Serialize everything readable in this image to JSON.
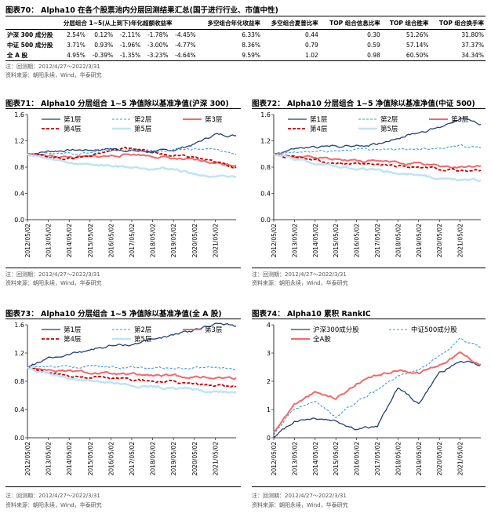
{
  "table70": {
    "title": "图表70：  Alpha10 在各个股票池内分层回测结果汇总(国于进行行业、市值中性)",
    "headers": [
      "",
      "分层组合 1~5(从上到下)年化超额收益率",
      "",
      "",
      "",
      "",
      "多空组合年化收益率",
      "多空组合夏普比率",
      "TOP 组合信息比率",
      "TOP 组合胜率",
      "TOP 组合换手率"
    ],
    "rows": [
      [
        "沪深 300 成分股",
        "2.54%",
        "0.12%",
        "-2.11%",
        "-1.78%",
        "-4.45%",
        "6.33%",
        "0.44",
        "0.30",
        "51.26%",
        "31.80%"
      ],
      [
        "中证 500 成分股",
        "3.71%",
        "0.93%",
        "-1.96%",
        "-3.00%",
        "-4.77%",
        "8.36%",
        "0.79",
        "0.59",
        "57.14%",
        "37.37%"
      ],
      [
        "全 A 股",
        "4.95%",
        "-0.39%",
        "-1.35%",
        "-3.23%",
        "-4.64%",
        "9.59%",
        "1.02",
        "0.98",
        "60.50%",
        "34.34%"
      ]
    ],
    "note1": "注：回测期：2012/4/27～2022/3/31",
    "note2": "资料来源：朝阳永续，Wind，华泰研究"
  },
  "fig71": {
    "title": "图表71：  Alpha10 分层组合 1~5 净值除以基准净值(沪深 300)",
    "note1": "注：回测期：2012/4/27～2022/3/31",
    "note2": "资料来源：朝阳永续，Wind，华泰研究"
  },
  "fig72": {
    "title": "图表72：  Alpha10 分层组合 1~5 净值除以基准净值(中证 500)",
    "note1": "注：回测期：2012/4/27～2022/3/31",
    "note2": "资料来源：朝阳永续，Wind，华泰研究"
  },
  "fig73": {
    "title": "图表73：  Alpha10 分层组合 1~5 净值除以基准净值(全 A 股)",
    "note1": "注：回测期：2012/4/27～2022/3/31",
    "note2": "资料来源：朝阳永续，Wind，华泰研究"
  },
  "fig74": {
    "title": "图表74：  Alpha10 累积 RankIC",
    "note1": "注：回测期：2012/4/27～2022/3/31",
    "note2": "资料来源：朝阳永续，Wind，华泰研究"
  },
  "colors": {
    "layer1": "#1f3f7a",
    "layer2": "#3a9ad9",
    "layer3": "#f06a6a",
    "layer4": "#c00000",
    "layer5": "#bfe3f5",
    "ic_hs300": "#1f3f7a",
    "ic_zz500": "#3a9ad9",
    "ic_all": "#f06a6a"
  },
  "chart_data": [
    {
      "type": "line",
      "id": "fig71",
      "x": [
        "2012/05/02",
        "2013/05/02",
        "2014/05/02",
        "2015/05/02",
        "2016/05/02",
        "2017/05/02",
        "2018/05/02",
        "2019/05/02",
        "2020/05/02",
        "2021/05/02",
        "2022/03/31"
      ],
      "ylim": [
        0,
        1.6
      ],
      "yticks": [
        0.0,
        0.4,
        0.8,
        1.2,
        1.6
      ],
      "legend_cols": 3,
      "series": [
        {
          "name": "第1层",
          "values": [
            1.0,
            1.04,
            1.06,
            1.06,
            1.08,
            1.05,
            1.03,
            1.06,
            1.15,
            1.3,
            1.28
          ]
        },
        {
          "name": "第2层",
          "values": [
            1.0,
            1.01,
            1.02,
            1.02,
            1.05,
            1.06,
            1.05,
            1.05,
            1.08,
            1.06,
            1.0
          ]
        },
        {
          "name": "第3层",
          "values": [
            1.0,
            0.97,
            0.95,
            0.95,
            0.97,
            1.0,
            0.97,
            0.93,
            0.9,
            0.86,
            0.83
          ]
        },
        {
          "name": "第4层",
          "values": [
            1.0,
            0.96,
            0.93,
            0.98,
            1.05,
            1.1,
            1.02,
            0.97,
            0.95,
            0.87,
            0.8
          ]
        },
        {
          "name": "第5层",
          "values": [
            1.0,
            0.92,
            0.87,
            0.84,
            0.82,
            0.8,
            0.79,
            0.77,
            0.7,
            0.64,
            0.65
          ]
        }
      ]
    },
    {
      "type": "line",
      "id": "fig72",
      "x": [
        "2012/05/02",
        "2013/05/02",
        "2014/05/02",
        "2015/05/02",
        "2016/05/02",
        "2017/05/02",
        "2018/05/02",
        "2019/05/02",
        "2020/05/02",
        "2021/05/02",
        "2022/03/31"
      ],
      "ylim": [
        0,
        1.6
      ],
      "yticks": [
        0.0,
        0.4,
        0.8,
        1.2,
        1.6
      ],
      "legend_cols": 3,
      "series": [
        {
          "name": "第1层",
          "values": [
            1.0,
            1.08,
            1.1,
            1.12,
            1.12,
            1.15,
            1.25,
            1.33,
            1.4,
            1.55,
            1.45
          ]
        },
        {
          "name": "第2层",
          "values": [
            1.0,
            1.02,
            1.04,
            1.05,
            1.07,
            1.08,
            1.06,
            1.08,
            1.1,
            1.13,
            1.1
          ]
        },
        {
          "name": "第3层",
          "values": [
            1.0,
            0.96,
            0.94,
            0.92,
            0.9,
            0.89,
            0.87,
            0.85,
            0.82,
            0.8,
            0.82
          ]
        },
        {
          "name": "第4层",
          "values": [
            1.0,
            0.95,
            0.9,
            0.86,
            0.84,
            0.83,
            0.82,
            0.8,
            0.77,
            0.74,
            0.75
          ]
        },
        {
          "name": "第5层",
          "values": [
            1.0,
            0.93,
            0.86,
            0.82,
            0.78,
            0.74,
            0.7,
            0.67,
            0.63,
            0.6,
            0.6
          ]
        }
      ]
    },
    {
      "type": "line",
      "id": "fig73",
      "x": [
        "2012/05/02",
        "2013/05/02",
        "2014/05/02",
        "2015/05/02",
        "2016/05/02",
        "2017/05/02",
        "2018/05/02",
        "2019/05/02",
        "2020/05/02",
        "2021/05/02",
        "2022/03/31"
      ],
      "ylim": [
        0,
        1.6
      ],
      "yticks": [
        0.0,
        0.4,
        0.8,
        1.2,
        1.6
      ],
      "legend_cols": 3,
      "series": [
        {
          "name": "第1层",
          "values": [
            1.0,
            1.12,
            1.18,
            1.25,
            1.3,
            1.32,
            1.4,
            1.45,
            1.52,
            1.62,
            1.58
          ]
        },
        {
          "name": "第2层",
          "values": [
            1.0,
            1.0,
            1.01,
            1.01,
            1.0,
            0.99,
            0.98,
            0.98,
            0.98,
            0.99,
            0.97
          ]
        },
        {
          "name": "第3层",
          "values": [
            1.0,
            0.96,
            0.94,
            0.92,
            0.9,
            0.89,
            0.88,
            0.87,
            0.86,
            0.85,
            0.85
          ]
        },
        {
          "name": "第4层",
          "values": [
            1.0,
            0.92,
            0.88,
            0.86,
            0.84,
            0.82,
            0.8,
            0.78,
            0.76,
            0.74,
            0.73
          ]
        },
        {
          "name": "第5层",
          "values": [
            1.0,
            0.9,
            0.84,
            0.8,
            0.78,
            0.74,
            0.72,
            0.7,
            0.68,
            0.65,
            0.65
          ]
        }
      ]
    },
    {
      "type": "line",
      "id": "fig74",
      "x": [
        "2012/05/02",
        "2013/05/02",
        "2014/05/02",
        "2015/05/02",
        "2016/05/02",
        "2017/05/02",
        "2018/05/02",
        "2019/05/02",
        "2020/05/02",
        "2021/05/02",
        "2022/03/31"
      ],
      "ylim": [
        0,
        4
      ],
      "yticks": [
        0,
        1,
        2,
        3,
        4
      ],
      "legend_cols": 2,
      "series": [
        {
          "name": "沪深300成分股",
          "values": [
            0.0,
            0.6,
            0.7,
            0.6,
            0.3,
            0.4,
            1.8,
            1.2,
            2.3,
            2.7,
            2.6
          ]
        },
        {
          "name": "中证500成分股",
          "values": [
            0.1,
            1.0,
            1.3,
            0.7,
            1.3,
            1.7,
            2.2,
            2.4,
            2.9,
            3.5,
            3.2
          ]
        },
        {
          "name": "全A股",
          "values": [
            0.2,
            1.2,
            1.6,
            1.4,
            1.9,
            2.2,
            2.4,
            2.3,
            2.6,
            3.0,
            2.6
          ]
        }
      ]
    }
  ]
}
